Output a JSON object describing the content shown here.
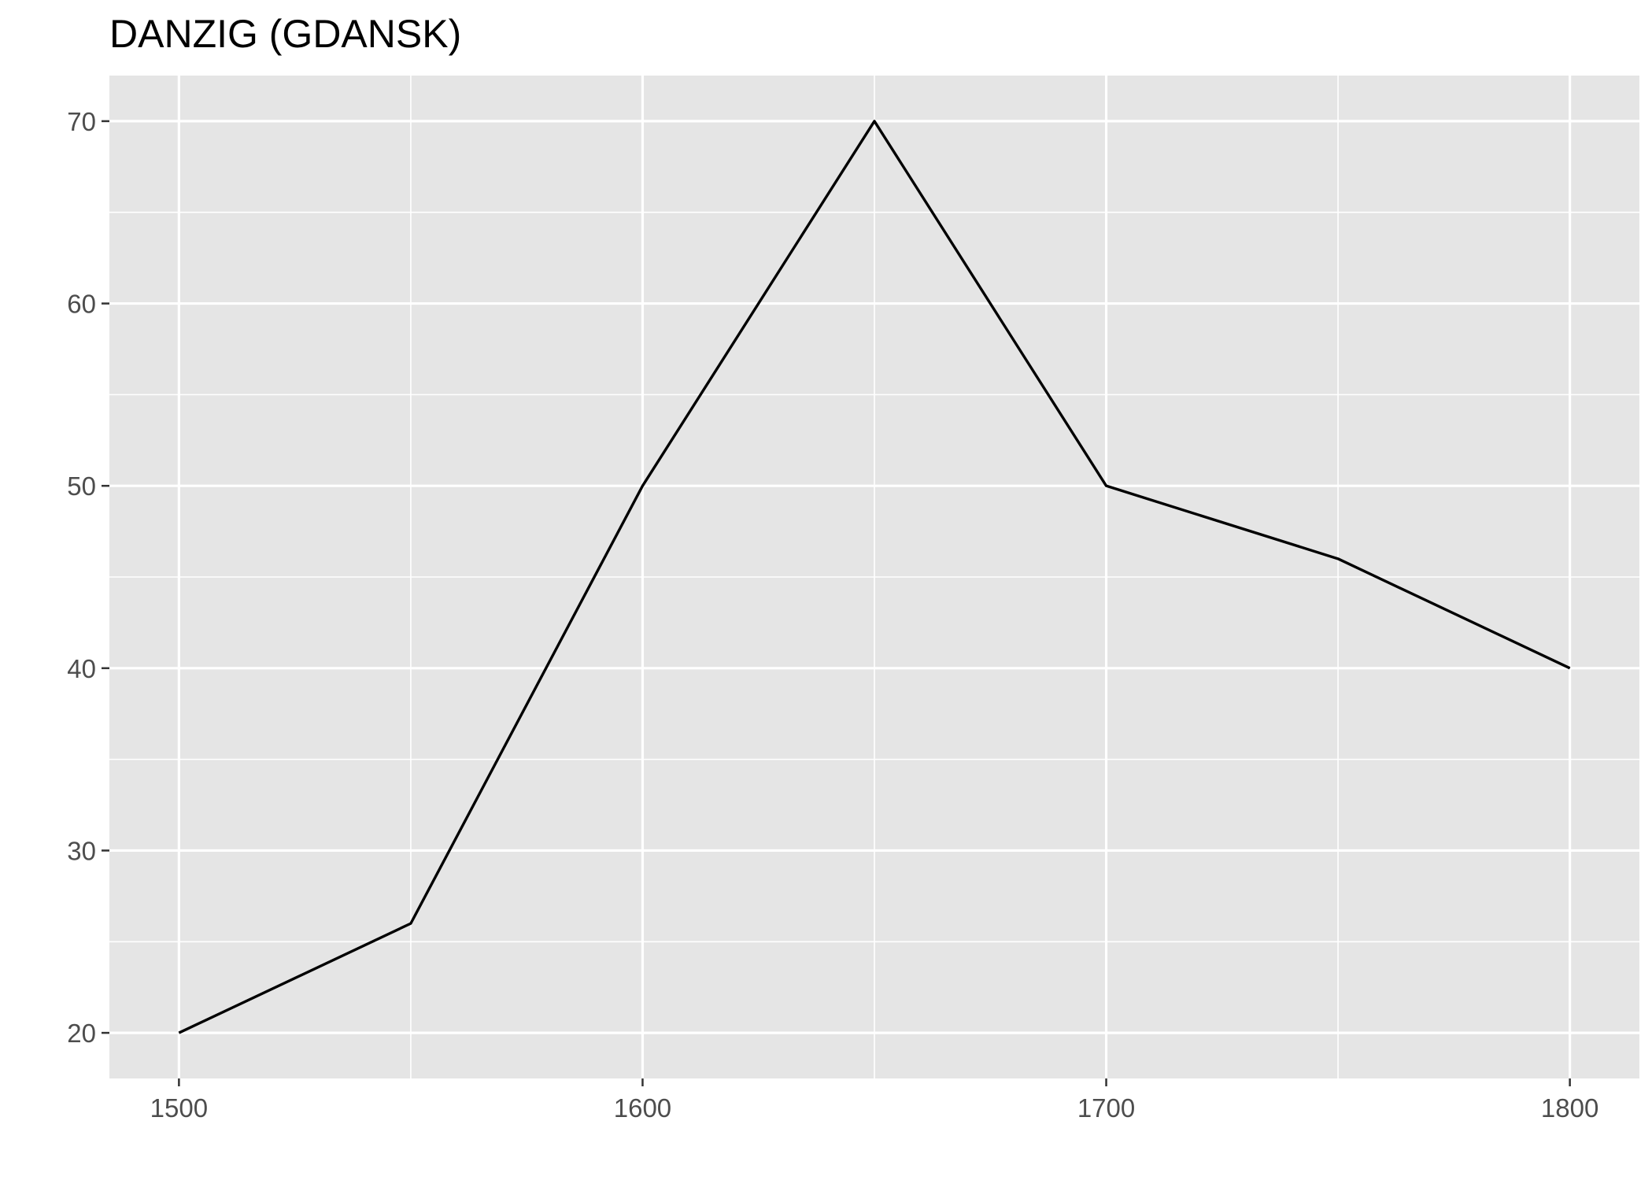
{
  "chart_data": {
    "type": "line",
    "title": "DANZIG (GDANSK)",
    "xlabel": "",
    "ylabel": "",
    "x": [
      1500,
      1550,
      1600,
      1650,
      1700,
      1750,
      1800
    ],
    "series": [
      {
        "values": [
          20,
          26,
          50,
          70,
          50,
          46,
          40
        ]
      }
    ],
    "xlim": [
      1485,
      1815
    ],
    "ylim": [
      17.5,
      72.5
    ],
    "xticks": [
      1500,
      1600,
      1700,
      1800
    ],
    "xticks_minor": [
      1550,
      1650,
      1750
    ],
    "yticks": [
      20,
      30,
      40,
      50,
      60,
      70
    ],
    "yticks_minor": [
      25,
      35,
      45,
      55,
      65
    ],
    "xtick_labels": [
      "1500",
      "1600",
      "1700",
      "1800"
    ],
    "ytick_labels": [
      "20",
      "30",
      "40",
      "50",
      "60",
      "70"
    ],
    "grid": true,
    "legend": "none",
    "colors": {
      "panel_background": "#e5e5e5",
      "grid": "#ffffff",
      "line": "#000000",
      "tick_label": "#4d4d4d",
      "tick_mark": "#333333"
    }
  }
}
